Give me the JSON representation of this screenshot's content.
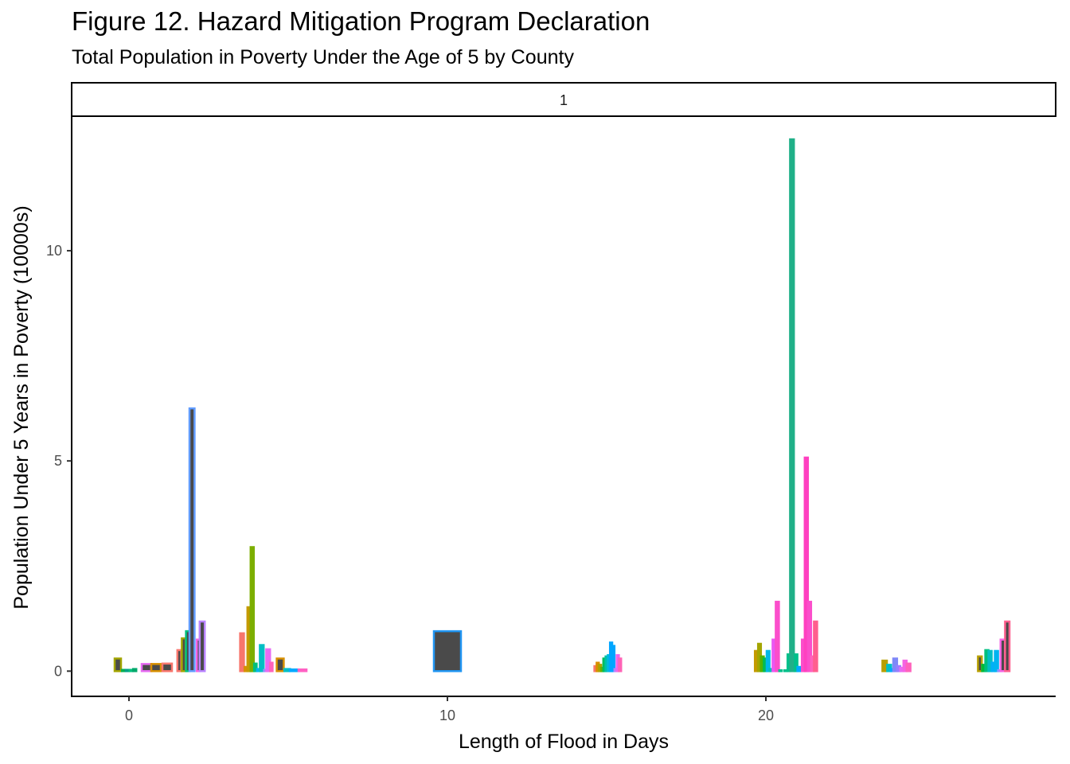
{
  "chart_data": {
    "type": "bar",
    "title": "Figure 12. Hazard Mitigation Program Declaration",
    "subtitle": "Total Population in Poverty Under the Age of 5 by County",
    "xlabel": "Length of Flood in Days",
    "ylabel": "Population Under 5 Years in Poverty (10000s)",
    "facet_label": "1",
    "xlim": [
      -1.8,
      29.1
    ],
    "ylim": [
      -0.6,
      13.2
    ],
    "x_ticks": [
      0,
      10,
      20
    ],
    "x_tick_labels": [
      "0",
      "10",
      "20"
    ],
    "y_ticks": [
      0,
      5,
      10
    ],
    "y_tick_labels": [
      "0",
      "5",
      "10"
    ],
    "grid": false,
    "legend": "none",
    "fill_color": "#4a4a4a",
    "bars": [
      {
        "x": -0.35,
        "w": 0.2,
        "y": 0.3,
        "color": "#a3a500",
        "fill": true
      },
      {
        "x": -0.17,
        "w": 0.1,
        "y": 0.03,
        "color": "#00b050",
        "fill": false
      },
      {
        "x": -0.05,
        "w": 0.1,
        "y": 0.03,
        "color": "#00a087",
        "fill": false
      },
      {
        "x": 0.07,
        "w": 0.1,
        "y": 0.03,
        "color": "#00bf7d",
        "fill": false
      },
      {
        "x": 0.18,
        "w": 0.1,
        "y": 0.05,
        "color": "#00a86b",
        "fill": false
      },
      {
        "x": 0.55,
        "w": 0.3,
        "y": 0.17,
        "color": "#e76bf3",
        "fill": true
      },
      {
        "x": 0.85,
        "w": 0.3,
        "y": 0.17,
        "color": "#d89000",
        "fill": true
      },
      {
        "x": 1.2,
        "w": 0.3,
        "y": 0.18,
        "color": "#f8766d",
        "fill": true
      },
      {
        "x": 1.58,
        "w": 0.12,
        "y": 0.5,
        "color": "#f8766d",
        "fill": true
      },
      {
        "x": 1.72,
        "w": 0.12,
        "y": 0.78,
        "color": "#a3a500",
        "fill": true
      },
      {
        "x": 1.85,
        "w": 0.12,
        "y": 0.95,
        "color": "#00bf7d",
        "fill": true
      },
      {
        "x": 1.98,
        "w": 0.16,
        "y": 6.25,
        "color": "#619cff",
        "fill": true
      },
      {
        "x": 2.18,
        "w": 0.1,
        "y": 0.75,
        "color": "#f564e3",
        "fill": true
      },
      {
        "x": 2.3,
        "w": 0.16,
        "y": 1.18,
        "color": "#b983ff",
        "fill": true
      },
      {
        "x": 3.55,
        "w": 0.12,
        "y": 0.9,
        "color": "#f8766d",
        "fill": false
      },
      {
        "x": 3.68,
        "w": 0.1,
        "y": 0.1,
        "color": "#d89000",
        "fill": false
      },
      {
        "x": 3.77,
        "w": 0.1,
        "y": 1.52,
        "color": "#c49a00",
        "fill": false
      },
      {
        "x": 3.87,
        "w": 0.1,
        "y": 2.95,
        "color": "#7cae00",
        "fill": false
      },
      {
        "x": 3.97,
        "w": 0.08,
        "y": 0.18,
        "color": "#00bf7d",
        "fill": false
      },
      {
        "x": 4.07,
        "w": 0.1,
        "y": 0.05,
        "color": "#00b4f0",
        "fill": false
      },
      {
        "x": 4.17,
        "w": 0.12,
        "y": 0.62,
        "color": "#00bfc4",
        "fill": false
      },
      {
        "x": 4.29,
        "w": 0.1,
        "y": 0.03,
        "color": "#9590ff",
        "fill": false
      },
      {
        "x": 4.37,
        "w": 0.12,
        "y": 0.52,
        "color": "#e76bf3",
        "fill": false
      },
      {
        "x": 4.47,
        "w": 0.08,
        "y": 0.2,
        "color": "#ff62bc",
        "fill": false
      },
      {
        "x": 4.75,
        "w": 0.22,
        "y": 0.3,
        "color": "#d89000",
        "fill": true
      },
      {
        "x": 4.97,
        "w": 0.18,
        "y": 0.05,
        "color": "#00bfc4",
        "fill": false
      },
      {
        "x": 5.18,
        "w": 0.26,
        "y": 0.04,
        "color": "#00a9ff",
        "fill": false
      },
      {
        "x": 5.45,
        "w": 0.25,
        "y": 0.04,
        "color": "#ff61c3",
        "fill": false
      },
      {
        "x": 10.0,
        "w": 0.85,
        "y": 0.95,
        "color": "#2196f3",
        "fill": true
      },
      {
        "x": 14.65,
        "w": 0.07,
        "y": 0.12,
        "color": "#f8766d",
        "fill": false
      },
      {
        "x": 14.72,
        "w": 0.07,
        "y": 0.2,
        "color": "#db8e00",
        "fill": false
      },
      {
        "x": 14.79,
        "w": 0.07,
        "y": 0.15,
        "color": "#aea200",
        "fill": false
      },
      {
        "x": 14.86,
        "w": 0.07,
        "y": 0.08,
        "color": "#64b200",
        "fill": false
      },
      {
        "x": 14.93,
        "w": 0.07,
        "y": 0.3,
        "color": "#00bd5c",
        "fill": false
      },
      {
        "x": 15.0,
        "w": 0.07,
        "y": 0.35,
        "color": "#00c1a7",
        "fill": false
      },
      {
        "x": 15.07,
        "w": 0.07,
        "y": 0.38,
        "color": "#00bade",
        "fill": false
      },
      {
        "x": 15.14,
        "w": 0.07,
        "y": 0.68,
        "color": "#00a6ff",
        "fill": false
      },
      {
        "x": 15.21,
        "w": 0.07,
        "y": 0.6,
        "color": "#00a6ff",
        "fill": false
      },
      {
        "x": 15.28,
        "w": 0.07,
        "y": 0.05,
        "color": "#b385ff",
        "fill": false
      },
      {
        "x": 15.35,
        "w": 0.07,
        "y": 0.38,
        "color": "#ef67eb",
        "fill": false
      },
      {
        "x": 15.42,
        "w": 0.07,
        "y": 0.3,
        "color": "#ff63b6",
        "fill": false
      },
      {
        "x": 19.7,
        "w": 0.09,
        "y": 0.48,
        "color": "#c49a00",
        "fill": false
      },
      {
        "x": 19.8,
        "w": 0.09,
        "y": 0.65,
        "color": "#a3a500",
        "fill": false
      },
      {
        "x": 19.89,
        "w": 0.09,
        "y": 0.35,
        "color": "#53b400",
        "fill": false
      },
      {
        "x": 19.98,
        "w": 0.09,
        "y": 0.3,
        "color": "#00bc56",
        "fill": false
      },
      {
        "x": 20.07,
        "w": 0.09,
        "y": 0.48,
        "color": "#00b8e7",
        "fill": false
      },
      {
        "x": 20.16,
        "w": 0.09,
        "y": 0.05,
        "color": "#00c0b8",
        "fill": false
      },
      {
        "x": 20.26,
        "w": 0.1,
        "y": 0.75,
        "color": "#ea57f2",
        "fill": false
      },
      {
        "x": 20.36,
        "w": 0.1,
        "y": 1.65,
        "color": "#fb4ecb",
        "fill": false
      },
      {
        "x": 20.46,
        "w": 0.08,
        "y": 0.02,
        "color": "#00c08b",
        "fill": false
      },
      {
        "x": 20.62,
        "w": 0.08,
        "y": 0.02,
        "color": "#00c08b",
        "fill": false
      },
      {
        "x": 20.72,
        "w": 0.08,
        "y": 0.4,
        "color": "#00c08b",
        "fill": false
      },
      {
        "x": 20.82,
        "w": 0.12,
        "y": 12.65,
        "color": "#20b088",
        "fill": false
      },
      {
        "x": 20.95,
        "w": 0.08,
        "y": 0.4,
        "color": "#00c08b",
        "fill": false
      },
      {
        "x": 21.05,
        "w": 0.12,
        "y": 0.1,
        "color": "#00a9ff",
        "fill": false
      },
      {
        "x": 21.18,
        "w": 0.1,
        "y": 0.75,
        "color": "#fb4ecb",
        "fill": false
      },
      {
        "x": 21.27,
        "w": 0.1,
        "y": 5.08,
        "color": "#ff40c0",
        "fill": false
      },
      {
        "x": 21.37,
        "w": 0.1,
        "y": 1.65,
        "color": "#fb4ecb",
        "fill": false
      },
      {
        "x": 21.46,
        "w": 0.08,
        "y": 0.35,
        "color": "#ff62bc",
        "fill": false
      },
      {
        "x": 21.56,
        "w": 0.1,
        "y": 1.18,
        "color": "#ff5f8e",
        "fill": false
      },
      {
        "x": 23.73,
        "w": 0.14,
        "y": 0.25,
        "color": "#b79f00",
        "fill": false
      },
      {
        "x": 23.87,
        "w": 0.12,
        "y": 0.15,
        "color": "#00bfc4",
        "fill": false
      },
      {
        "x": 23.97,
        "w": 0.1,
        "y": 0.05,
        "color": "#00a9ff",
        "fill": false
      },
      {
        "x": 24.06,
        "w": 0.12,
        "y": 0.3,
        "color": "#7f88f8",
        "fill": false
      },
      {
        "x": 24.17,
        "w": 0.1,
        "y": 0.12,
        "color": "#9a7cff",
        "fill": false
      },
      {
        "x": 24.27,
        "w": 0.1,
        "y": 0.08,
        "color": "#e76bf3",
        "fill": false
      },
      {
        "x": 24.37,
        "w": 0.1,
        "y": 0.25,
        "color": "#f564e3",
        "fill": false
      },
      {
        "x": 24.48,
        "w": 0.12,
        "y": 0.18,
        "color": "#ff62bc",
        "fill": false
      },
      {
        "x": 26.72,
        "w": 0.12,
        "y": 0.35,
        "color": "#b79f00",
        "fill": true
      },
      {
        "x": 26.84,
        "w": 0.1,
        "y": 0.15,
        "color": "#00ba38",
        "fill": false
      },
      {
        "x": 26.94,
        "w": 0.1,
        "y": 0.5,
        "color": "#00bf7d",
        "fill": false
      },
      {
        "x": 27.04,
        "w": 0.1,
        "y": 0.48,
        "color": "#00bfc4",
        "fill": false
      },
      {
        "x": 27.14,
        "w": 0.1,
        "y": 0.2,
        "color": "#00b0f6",
        "fill": false
      },
      {
        "x": 27.24,
        "w": 0.1,
        "y": 0.48,
        "color": "#00b4f0",
        "fill": false
      },
      {
        "x": 27.34,
        "w": 0.1,
        "y": 0.02,
        "color": "#9590ff",
        "fill": false
      },
      {
        "x": 27.44,
        "w": 0.14,
        "y": 0.75,
        "color": "#f564e3",
        "fill": true
      },
      {
        "x": 27.58,
        "w": 0.14,
        "y": 1.18,
        "color": "#ff5f8e",
        "fill": true
      }
    ]
  }
}
